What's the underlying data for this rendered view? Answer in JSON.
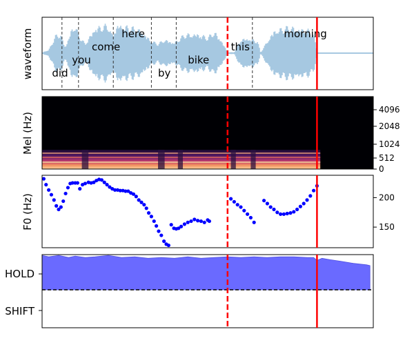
{
  "chart_data": [
    {
      "type": "area",
      "panel": "waveform",
      "ylabel": "waveform",
      "xlim": [
        0,
        1
      ],
      "words": [
        {
          "text": "did",
          "x": 0.03
        },
        {
          "text": "you",
          "x": 0.09
        },
        {
          "text": "come",
          "x": 0.15
        },
        {
          "text": "here",
          "x": 0.24
        },
        {
          "text": "by",
          "x": 0.35
        },
        {
          "text": "bike",
          "x": 0.44
        },
        {
          "text": "this",
          "x": 0.57
        },
        {
          "text": "morning",
          "x": 0.73
        }
      ],
      "word_boundaries": [
        0.06,
        0.11,
        0.215,
        0.33,
        0.405,
        0.635
      ],
      "speech_end": 0.83,
      "amplitude_envelope": {
        "x": [
          0.005,
          0.02,
          0.04,
          0.055,
          0.07,
          0.09,
          0.1,
          0.11,
          0.13,
          0.16,
          0.2,
          0.21,
          0.23,
          0.26,
          0.3,
          0.33,
          0.35,
          0.37,
          0.4,
          0.43,
          0.47,
          0.5,
          0.52,
          0.54,
          0.56,
          0.58,
          0.6,
          0.62,
          0.65,
          0.66,
          0.7,
          0.75,
          0.8,
          0.82,
          0.83
        ],
        "amp": [
          0.05,
          0.1,
          0.55,
          0.65,
          0.2,
          0.8,
          0.92,
          0.6,
          0.3,
          0.85,
          0.9,
          0.6,
          0.96,
          0.85,
          0.75,
          0.4,
          0.3,
          0.45,
          0.35,
          0.6,
          0.65,
          0.5,
          0.7,
          0.45,
          0.03,
          0.03,
          0.45,
          0.5,
          0.4,
          0.02,
          0.75,
          0.85,
          0.78,
          0.6,
          0.1
        ]
      }
    },
    {
      "type": "heatmap",
      "panel": "mel",
      "ylabel": "Mel (Hz)",
      "yticks": [
        "0",
        "512",
        "1024",
        "2048",
        "4096"
      ],
      "xlim": [
        0,
        1
      ],
      "active_until": 0.84
    },
    {
      "type": "scatter",
      "panel": "f0",
      "ylabel": "F0 (Hz)",
      "ylim": [
        115,
        238
      ],
      "yticks": [
        150,
        200
      ],
      "x": [
        0.005,
        0.012,
        0.02,
        0.028,
        0.036,
        0.043,
        0.05,
        0.057,
        0.064,
        0.071,
        0.078,
        0.085,
        0.092,
        0.1,
        0.107,
        0.114,
        0.122,
        0.13,
        0.14,
        0.148,
        0.156,
        0.164,
        0.172,
        0.18,
        0.188,
        0.196,
        0.204,
        0.212,
        0.22,
        0.228,
        0.236,
        0.244,
        0.252,
        0.26,
        0.268,
        0.276,
        0.284,
        0.292,
        0.3,
        0.308,
        0.315,
        0.322,
        0.33,
        0.338,
        0.345,
        0.352,
        0.36,
        0.368,
        0.375,
        0.382,
        0.39,
        0.398,
        0.405,
        0.412,
        0.42,
        0.43,
        0.44,
        0.45,
        0.46,
        0.47,
        0.48,
        0.49,
        0.5,
        0.505,
        0.57,
        0.58,
        0.59,
        0.6,
        0.61,
        0.62,
        0.63,
        0.64,
        0.67,
        0.68,
        0.69,
        0.7,
        0.71,
        0.72,
        0.73,
        0.74,
        0.75,
        0.76,
        0.77,
        0.78,
        0.79,
        0.8,
        0.81,
        0.82,
        0.83
      ],
      "y": [
        232,
        222,
        213,
        205,
        196,
        186,
        180,
        184,
        194,
        207,
        217,
        224,
        225,
        225,
        225,
        215,
        222,
        224,
        226,
        225,
        226,
        229,
        231,
        230,
        226,
        222,
        218,
        215,
        213,
        213,
        212,
        212,
        211,
        211,
        208,
        206,
        202,
        196,
        192,
        188,
        182,
        174,
        168,
        160,
        152,
        143,
        136,
        126,
        121,
        119,
        154,
        148,
        147,
        148,
        151,
        155,
        158,
        160,
        163,
        161,
        160,
        158,
        162,
        160,
        198,
        193,
        188,
        184,
        178,
        172,
        166,
        158,
        195,
        190,
        184,
        180,
        175,
        172,
        172,
        173,
        174,
        176,
        180,
        185,
        190,
        196,
        203,
        212,
        220
      ]
    },
    {
      "type": "area",
      "panel": "turn-taking",
      "ytick_labels": [
        "HOLD",
        "SHIFT"
      ],
      "threshold": 0.5,
      "ylim": [
        0,
        1
      ],
      "x": [
        0,
        0.02,
        0.05,
        0.08,
        0.1,
        0.13,
        0.16,
        0.2,
        0.24,
        0.28,
        0.32,
        0.36,
        0.4,
        0.44,
        0.48,
        0.52,
        0.56,
        0.6,
        0.64,
        0.68,
        0.72,
        0.76,
        0.8,
        0.82,
        0.83,
        0.845,
        0.87,
        0.9,
        0.94,
        0.98,
        1.0
      ],
      "values": [
        0.99,
        0.97,
        0.99,
        0.96,
        0.98,
        0.96,
        0.97,
        0.99,
        0.96,
        0.97,
        0.95,
        0.96,
        0.95,
        0.97,
        0.95,
        0.96,
        0.97,
        0.96,
        0.97,
        0.96,
        0.97,
        0.97,
        0.96,
        0.96,
        0.92,
        0.95,
        0.93,
        0.91,
        0.88,
        0.86,
        0.85
      ]
    }
  ],
  "markers": {
    "dashed_x": 0.56,
    "solid_x": 0.83
  },
  "colors": {
    "waveform": "#a6c8e1",
    "word_boundary": "#333333",
    "marker": "#ff0000",
    "f0_points": "#0000ff",
    "hold_fill": "#6a6aff",
    "threshold_line": "#000000",
    "mel_background": "#000004"
  }
}
